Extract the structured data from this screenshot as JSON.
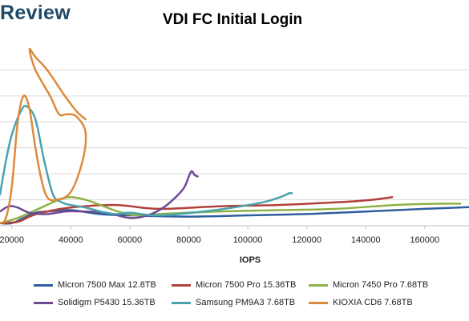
{
  "brand": {
    "text": "Review"
  },
  "chart_data": {
    "type": "line",
    "title": "VDI FC Initial Login",
    "xlabel": "IOPS",
    "ylabel": "",
    "x_ticks": [
      20000,
      40000,
      60000,
      80000,
      100000,
      120000,
      140000,
      160000
    ],
    "xlim": [
      16000,
      175000
    ],
    "ylim": [
      0,
      7
    ],
    "grid": "horizontal",
    "legend_position": "bottom",
    "series": [
      {
        "name": "Micron 7500 Max 12.8TB",
        "color": "#2f5e9e",
        "points": [
          [
            16000,
            0.1
          ],
          [
            20000,
            0.1
          ],
          [
            24000,
            0.3
          ],
          [
            28000,
            0.5
          ],
          [
            32000,
            0.55
          ],
          [
            40000,
            0.6
          ],
          [
            50000,
            0.45
          ],
          [
            60000,
            0.4
          ],
          [
            80000,
            0.35
          ],
          [
            100000,
            0.4
          ],
          [
            120000,
            0.45
          ],
          [
            140000,
            0.55
          ],
          [
            160000,
            0.65
          ],
          [
            175000,
            0.72
          ]
        ]
      },
      {
        "name": "Micron 7500 Pro 15.36TB",
        "color": "#b2403a",
        "points": [
          [
            16000,
            0.1
          ],
          [
            22000,
            0.15
          ],
          [
            26000,
            0.35
          ],
          [
            30000,
            0.5
          ],
          [
            40000,
            0.7
          ],
          [
            55000,
            0.8
          ],
          [
            70000,
            0.65
          ],
          [
            90000,
            0.75
          ],
          [
            110000,
            0.8
          ],
          [
            130000,
            0.9
          ],
          [
            142000,
            1.0
          ],
          [
            149000,
            1.1
          ]
        ]
      },
      {
        "name": "Micron 7450 Pro 7.68TB",
        "color": "#8db247",
        "points": [
          [
            16000,
            0.1
          ],
          [
            22000,
            0.3
          ],
          [
            30000,
            0.7
          ],
          [
            36000,
            1.0
          ],
          [
            40000,
            1.1
          ],
          [
            45000,
            1.0
          ],
          [
            50000,
            0.8
          ],
          [
            56000,
            0.55
          ],
          [
            62000,
            0.4
          ],
          [
            70000,
            0.45
          ],
          [
            90000,
            0.55
          ],
          [
            110000,
            0.6
          ],
          [
            130000,
            0.65
          ],
          [
            150000,
            0.8
          ],
          [
            165000,
            0.85
          ],
          [
            172000,
            0.85
          ]
        ]
      },
      {
        "name": "Solidigm P5430 15.36TB",
        "color": "#6e4a93",
        "points": [
          [
            16000,
            0.55
          ],
          [
            19000,
            0.75
          ],
          [
            22000,
            0.7
          ],
          [
            26000,
            0.5
          ],
          [
            32000,
            0.45
          ],
          [
            38000,
            0.55
          ],
          [
            44000,
            0.55
          ],
          [
            52000,
            0.5
          ],
          [
            60000,
            0.3
          ],
          [
            66000,
            0.4
          ],
          [
            72000,
            0.75
          ],
          [
            78000,
            1.4
          ],
          [
            80000,
            1.9
          ],
          [
            81000,
            2.1
          ],
          [
            82000,
            1.95
          ],
          [
            83000,
            1.9
          ]
        ]
      },
      {
        "name": "Samsung PM9A3 7.68TB",
        "color": "#4aa3ad",
        "points": [
          [
            16000,
            1.2
          ],
          [
            18000,
            2.5
          ],
          [
            20000,
            3.5
          ],
          [
            23000,
            4.4
          ],
          [
            25000,
            4.6
          ],
          [
            28000,
            4.1
          ],
          [
            31000,
            2.5
          ],
          [
            34000,
            1.2
          ],
          [
            37000,
            0.9
          ],
          [
            40000,
            0.8
          ],
          [
            45000,
            0.7
          ],
          [
            50000,
            0.55
          ],
          [
            55000,
            0.45
          ],
          [
            60000,
            0.5
          ],
          [
            70000,
            0.4
          ],
          [
            85000,
            0.55
          ],
          [
            95000,
            0.7
          ],
          [
            105000,
            0.9
          ],
          [
            111000,
            1.1
          ],
          [
            114000,
            1.25
          ],
          [
            115000,
            1.25
          ]
        ]
      },
      {
        "name": "KIOXIA CD6 7.68TB",
        "color": "#de8a3c",
        "points": [
          [
            16000,
            0.1
          ],
          [
            18000,
            0.3
          ],
          [
            20000,
            1.5
          ],
          [
            22000,
            4.0
          ],
          [
            24000,
            5.0
          ],
          [
            26000,
            4.5
          ],
          [
            28000,
            3.0
          ],
          [
            30000,
            1.8
          ],
          [
            32000,
            1.1
          ],
          [
            35000,
            1.0
          ],
          [
            40000,
            1.3
          ],
          [
            44000,
            2.5
          ],
          [
            45000,
            3.6
          ],
          [
            42000,
            4.2
          ],
          [
            39000,
            4.3
          ],
          [
            36000,
            4.3
          ],
          [
            33000,
            5.0
          ],
          [
            28000,
            6.0
          ],
          [
            26000,
            6.8
          ],
          [
            28000,
            6.5
          ],
          [
            32000,
            6.0
          ],
          [
            38000,
            5.0
          ],
          [
            42000,
            4.4
          ],
          [
            45000,
            4.1
          ]
        ]
      }
    ]
  }
}
